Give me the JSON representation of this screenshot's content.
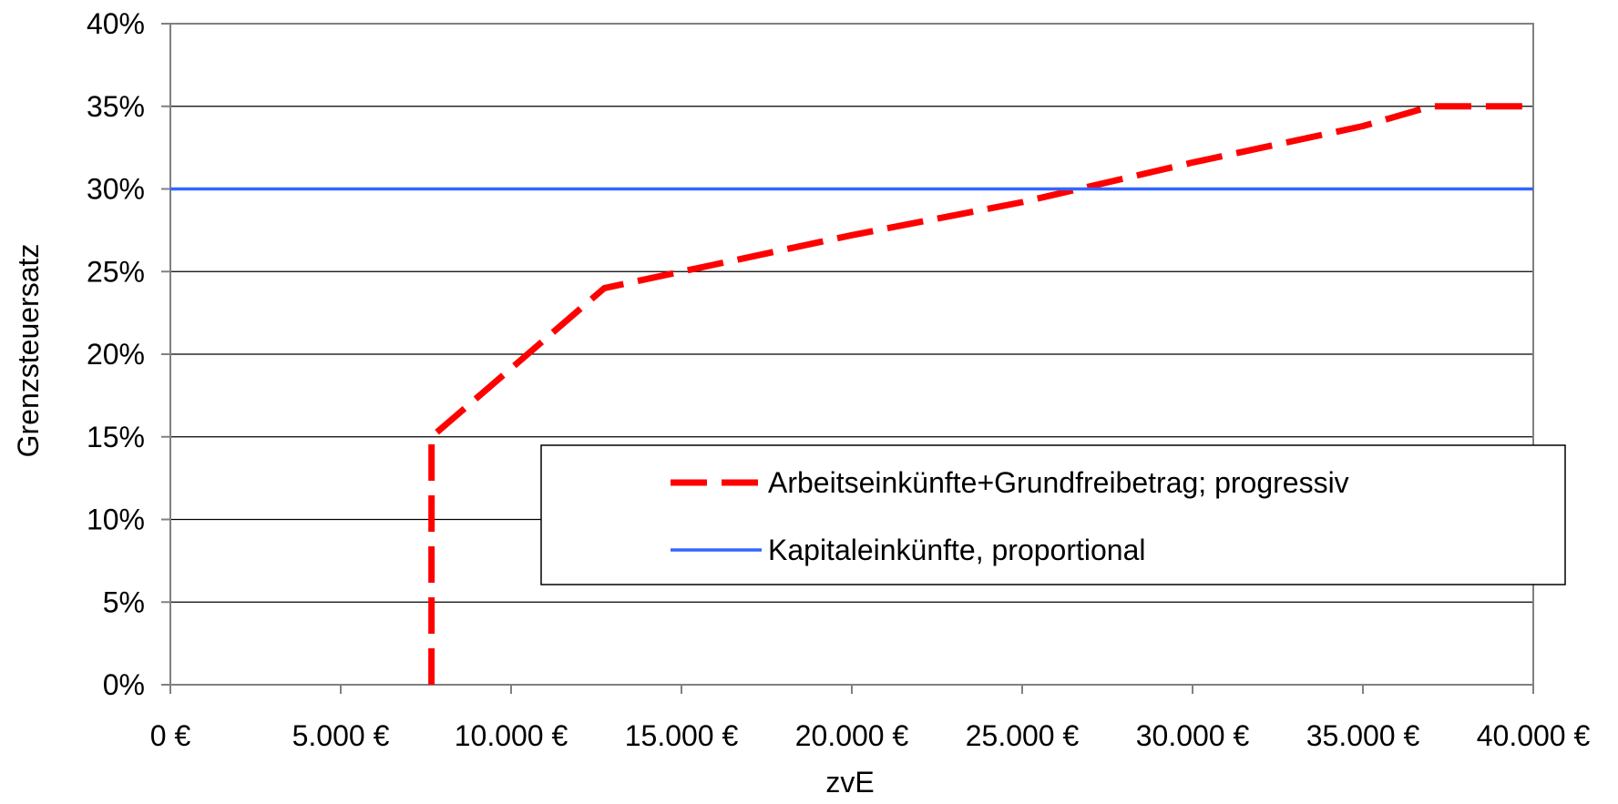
{
  "chart_data": {
    "type": "line",
    "xlabel": "zvE",
    "ylabel": "Grenzsteuersatz",
    "xlim": [
      0,
      40000
    ],
    "ylim": [
      0,
      0.4
    ],
    "x_ticks": [
      0,
      5000,
      10000,
      15000,
      20000,
      25000,
      30000,
      35000,
      40000
    ],
    "x_tick_labels": [
      "0 €",
      "5.000 €",
      "10.000 €",
      "15.000 €",
      "20.000 €",
      "25.000 €",
      "30.000 €",
      "35.000 €",
      "40.000 €"
    ],
    "y_ticks": [
      0,
      0.05,
      0.1,
      0.15,
      0.2,
      0.25,
      0.3,
      0.35,
      0.4
    ],
    "y_tick_labels": [
      "0%",
      "5%",
      "10%",
      "15%",
      "20%",
      "25%",
      "30%",
      "35%",
      "40%"
    ],
    "grid": "horizontal",
    "legend_position": "lower-right",
    "series": [
      {
        "name": "Arbeitseinkünfte+Grundfreibetrag; progressiv",
        "color": "#ff0000",
        "style": "dashed",
        "x": [
          7664,
          7665,
          12739,
          20000,
          25000,
          30000,
          35000,
          37000,
          40000
        ],
        "y": [
          0,
          0.15,
          0.24,
          0.272,
          0.292,
          0.316,
          0.338,
          0.35,
          0.35
        ]
      },
      {
        "name": "Kapitaleinkünfte, proportional",
        "color": "#3366ff",
        "style": "solid",
        "x": [
          0,
          40000
        ],
        "y": [
          0.3,
          0.3
        ]
      }
    ]
  }
}
